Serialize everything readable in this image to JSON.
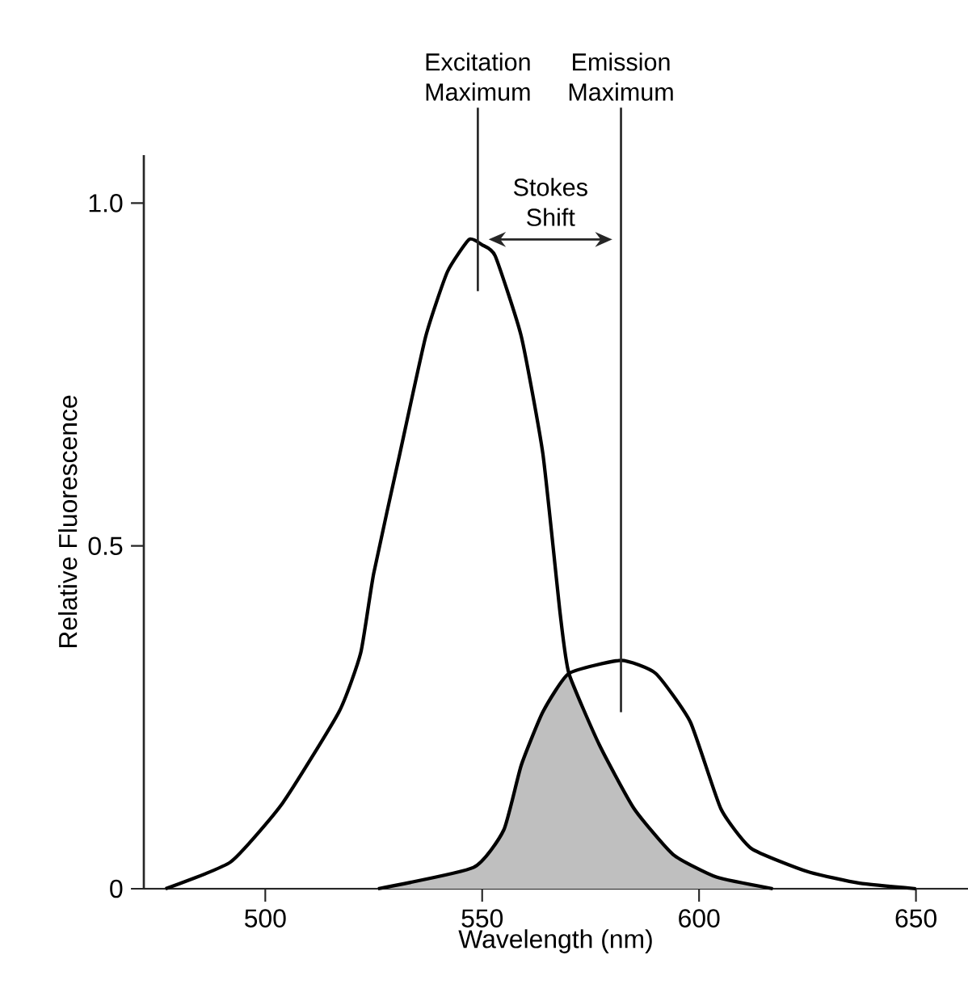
{
  "chart_data": {
    "type": "line",
    "xlabel": "Wavelength (nm)",
    "ylabel": "Relative Fluorescence",
    "xlim": [
      472,
      662
    ],
    "ylim": [
      0,
      1.07
    ],
    "xticks": [
      500,
      550,
      600,
      650
    ],
    "yticks": [
      0,
      {
        "value": 0.5,
        "label": "0.5"
      },
      {
        "value": 1.0,
        "label": "1.0"
      }
    ],
    "series": [
      {
        "color": "#000000",
        "x": [
          477,
          492,
          504,
          517,
          522,
          525,
          531,
          537,
          542,
          547,
          550,
          553,
          559,
          564,
          568,
          570,
          577,
          585,
          594,
          604,
          617
        ],
        "values": [
          0,
          0.039,
          0.125,
          0.258,
          0.344,
          0.46,
          0.634,
          0.806,
          0.9,
          0.947,
          0.939,
          0.923,
          0.806,
          0.634,
          0.4,
          0.314,
          0.21,
          0.117,
          0.05,
          0.017,
          0
        ]
      },
      {
        "color": "#000000",
        "x": [
          526,
          548,
          555,
          559,
          564,
          570,
          582,
          590,
          598,
          605,
          612,
          625,
          637,
          650
        ],
        "values": [
          0,
          0.031,
          0.086,
          0.18,
          0.258,
          0.314,
          0.333,
          0.314,
          0.243,
          0.117,
          0.059,
          0.025,
          0.008,
          0
        ]
      },
      {
        "type": "area",
        "color": "#bfbfbf",
        "x": [
          526,
          548,
          555,
          559,
          564,
          570,
          577,
          585,
          594,
          604,
          617
        ],
        "values": [
          0,
          0.031,
          0.086,
          0.18,
          0.258,
          0.314,
          0.21,
          0.117,
          0.05,
          0.017,
          0
        ]
      }
    ],
    "ref_lines": [
      {
        "axis": "x",
        "value": 549,
        "label": "Excitation Maximum"
      },
      {
        "axis": "x",
        "value": 582,
        "label": "Emission Maximum"
      }
    ],
    "annotations": [
      "Stokes Shift"
    ]
  }
}
